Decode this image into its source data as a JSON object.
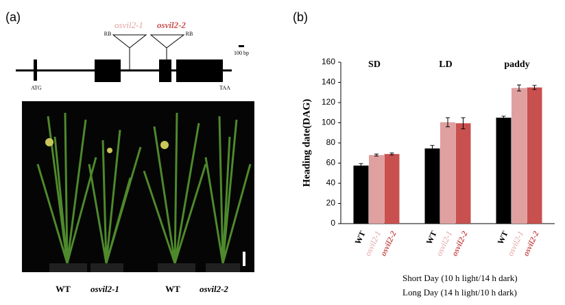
{
  "panel_a": {
    "label": "(a)",
    "gene": {
      "insertions": [
        "osvil2-1",
        "osvil2-2"
      ],
      "rb_labels": [
        "RB",
        "RB"
      ],
      "scale": "100 bp",
      "start": "ATG",
      "stop": "TAA"
    },
    "photo_labels": [
      "WT",
      "osvil2-1",
      "WT",
      "osvil2-2"
    ]
  },
  "chart_data": {
    "type": "bar",
    "label": "(b)",
    "y_label": "Heading date(DAG)",
    "categories": [
      "SD",
      "LD",
      "paddy"
    ],
    "series": [
      {
        "name": "WT",
        "color": "#000000",
        "values": [
          57.5,
          74.5,
          105
        ],
        "errors": [
          2,
          3,
          1.5
        ]
      },
      {
        "name": "osvil2-1",
        "color": "#e0a0a0",
        "values": [
          68,
          100.5,
          134.5
        ],
        "errors": [
          1,
          4.5,
          3
        ]
      },
      {
        "name": "osvil2-2",
        "color": "#c8504f",
        "values": [
          69,
          99.5,
          135
        ],
        "errors": [
          1,
          5.5,
          2
        ]
      }
    ],
    "ylim": [
      0,
      160
    ],
    "yticks": [
      0,
      20,
      40,
      60,
      80,
      100,
      120,
      140,
      160
    ]
  },
  "notes": [
    "Short Day (10 h light/14  h dark)",
    "Long Day (14 h light/10  h dark)"
  ]
}
